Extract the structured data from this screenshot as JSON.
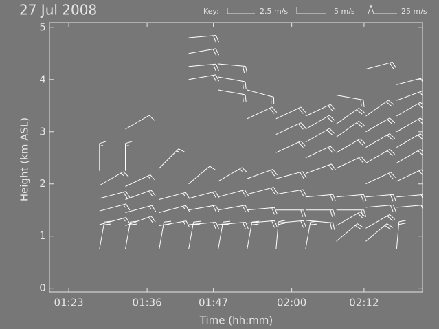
{
  "chart_data": {
    "type": "wind-barb",
    "title": "27 Jul 2008",
    "key_title": "Key:",
    "key_labels": [
      "2.5 m/s",
      "5 m/s",
      "25 m/s"
    ],
    "x_label": "Time (hh:mm)",
    "y_label": "Height (km ASL)",
    "xlim": [
      79.8,
      141.7
    ],
    "ylim": [
      -0.07,
      5.09
    ],
    "xticks": [
      {
        "value": 83,
        "label": "01:23"
      },
      {
        "value": 96,
        "label": "01:36"
      },
      {
        "value": 107,
        "label": "01:47"
      },
      {
        "value": 120,
        "label": "02:00"
      },
      {
        "value": 132,
        "label": "02:12"
      }
    ],
    "yticks": [
      0,
      1,
      2,
      3,
      4,
      5
    ],
    "color": "#ffffff",
    "x": [
      88.1,
      88.1,
      88.1,
      88.1,
      88.1,
      88.1,
      92.4,
      92.4,
      92.4,
      92.4,
      92.4,
      92.4,
      92.4,
      98.0,
      98.0,
      98.0,
      98.0,
      98.0,
      102.9,
      102.9,
      102.9,
      102.9,
      102.9,
      102.9,
      102.9,
      102.9,
      102.9,
      107.8,
      107.8,
      107.8,
      107.8,
      107.8,
      107.8,
      107.8,
      107.8,
      112.6,
      112.6,
      112.6,
      112.6,
      112.6,
      112.6,
      112.6,
      117.4,
      117.4,
      117.4,
      117.4,
      117.4,
      117.4,
      117.4,
      117.4,
      122.3,
      122.3,
      122.3,
      122.3,
      122.3,
      122.3,
      122.3,
      122.3,
      122.3,
      127.4,
      127.4,
      127.4,
      127.4,
      127.4,
      127.4,
      127.4,
      127.4,
      127.4,
      132.3,
      132.3,
      132.3,
      132.3,
      132.3,
      132.3,
      132.3,
      132.3,
      132.3,
      132.3,
      137.4,
      137.4,
      137.4,
      137.4,
      137.4,
      137.4,
      137.4,
      137.4,
      137.4,
      137.4
    ],
    "y": [
      0.75,
      1.22,
      1.48,
      1.72,
      1.97,
      2.25,
      0.75,
      1.2,
      1.45,
      1.7,
      1.95,
      2.25,
      3.05,
      0.75,
      1.2,
      1.45,
      1.7,
      2.3,
      0.75,
      1.22,
      1.5,
      1.72,
      2.0,
      4.0,
      4.25,
      4.5,
      4.8,
      0.75,
      1.22,
      1.5,
      1.75,
      2.05,
      3.8,
      4.05,
      4.3,
      0.75,
      1.25,
      1.5,
      1.8,
      2.1,
      3.25,
      3.8,
      0.75,
      1.25,
      1.5,
      1.8,
      2.1,
      2.6,
      2.95,
      3.25,
      0.75,
      1.3,
      1.5,
      1.75,
      2.2,
      2.5,
      2.8,
      3.05,
      3.3,
      0.9,
      1.2,
      1.5,
      1.75,
      2.3,
      2.6,
      2.9,
      3.15,
      3.7,
      0.9,
      1.15,
      1.55,
      1.75,
      2.0,
      2.4,
      2.7,
      3.0,
      3.3,
      4.2,
      0.75,
      1.55,
      1.75,
      2.05,
      2.4,
      2.7,
      3.0,
      3.3,
      3.6,
      3.9
    ],
    "speed": [
      10,
      7.5,
      7.5,
      10,
      7.5,
      7.5,
      10,
      10,
      7.5,
      10,
      7.5,
      7.5,
      5,
      10,
      7.5,
      7.5,
      7.5,
      7.5,
      10,
      10,
      10,
      10,
      5,
      10,
      10,
      10,
      10,
      10,
      10,
      10,
      10,
      7.5,
      10,
      10,
      10,
      10,
      10,
      10,
      10,
      10,
      10,
      10,
      10,
      10,
      10,
      10,
      10,
      10,
      10,
      10,
      10,
      10,
      10,
      10,
      10,
      10,
      10,
      10,
      10,
      10,
      10,
      10,
      10,
      10,
      10,
      10,
      10,
      10,
      10,
      10,
      10,
      10,
      10,
      10,
      10,
      10,
      10,
      10,
      10,
      10,
      10,
      10,
      10,
      10,
      10,
      10,
      10,
      10
    ],
    "direction": [
      80,
      15,
      15,
      15,
      30,
      90,
      80,
      20,
      15,
      20,
      25,
      90,
      30,
      80,
      10,
      15,
      15,
      45,
      80,
      5,
      10,
      15,
      40,
      10,
      5,
      10,
      5,
      80,
      5,
      10,
      15,
      30,
      -10,
      -10,
      -5,
      80,
      5,
      5,
      15,
      20,
      25,
      -15,
      85,
      5,
      0,
      10,
      15,
      25,
      25,
      25,
      80,
      -5,
      0,
      5,
      20,
      25,
      30,
      30,
      25,
      40,
      30,
      0,
      5,
      25,
      30,
      35,
      35,
      -10,
      40,
      30,
      5,
      5,
      25,
      30,
      30,
      30,
      35,
      15,
      85,
      5,
      5,
      25,
      30,
      30,
      30,
      30,
      20,
      15
    ]
  }
}
